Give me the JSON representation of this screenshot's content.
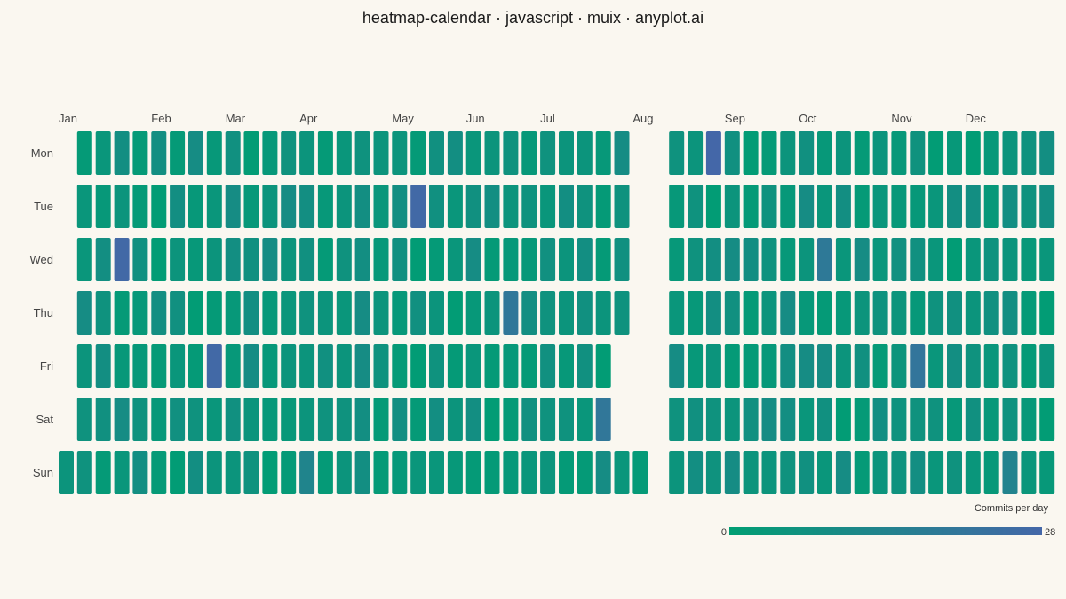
{
  "chart_data": {
    "type": "heatmap",
    "title": "heatmap-calendar · javascript · muix · anyplot.ai",
    "months": [
      "Jan",
      "Feb",
      "Mar",
      "Apr",
      "May",
      "Jun",
      "Jul",
      "Aug",
      "Sep",
      "Oct",
      "Nov",
      "Dec"
    ],
    "month_week_start": [
      0,
      5,
      9,
      13,
      18,
      22,
      26,
      31,
      35,
      39,
      44,
      48
    ],
    "weekdays": [
      "Mon",
      "Tue",
      "Wed",
      "Thu",
      "Fri",
      "Sat",
      "Sun"
    ],
    "weeks": 53,
    "gap_after_week": 31,
    "missing_cells": [
      [
        0,
        0
      ],
      [
        1,
        0
      ],
      [
        2,
        0
      ],
      [
        3,
        0
      ],
      [
        4,
        0
      ],
      [
        5,
        0
      ],
      [
        0,
        31
      ],
      [
        1,
        31
      ],
      [
        2,
        31
      ],
      [
        3,
        31
      ],
      [
        4,
        30
      ],
      [
        5,
        30
      ],
      [
        4,
        31
      ],
      [
        5,
        31
      ]
    ],
    "color_scale": {
      "min": 0,
      "max": 28,
      "low_color": "#009e73",
      "high_color": "#4467a8"
    },
    "highlights": [
      {
        "row": 0,
        "week": 34,
        "value": 28
      },
      {
        "row": 1,
        "week": 19,
        "value": 27
      },
      {
        "row": 2,
        "week": 3,
        "value": 27
      },
      {
        "row": 2,
        "week": 40,
        "value": 19
      },
      {
        "row": 3,
        "week": 24,
        "value": 20
      },
      {
        "row": 4,
        "week": 8,
        "value": 27
      },
      {
        "row": 4,
        "week": 45,
        "value": 21
      },
      {
        "row": 5,
        "week": 29,
        "value": 20
      },
      {
        "row": 6,
        "week": 13,
        "value": 13
      },
      {
        "row": 6,
        "week": 50,
        "value": 14
      }
    ],
    "base_value_range": [
      1,
      9
    ],
    "legend": {
      "label": "Commits per day",
      "min_label": "0",
      "max_label": "28",
      "position": "bottom-right"
    }
  }
}
